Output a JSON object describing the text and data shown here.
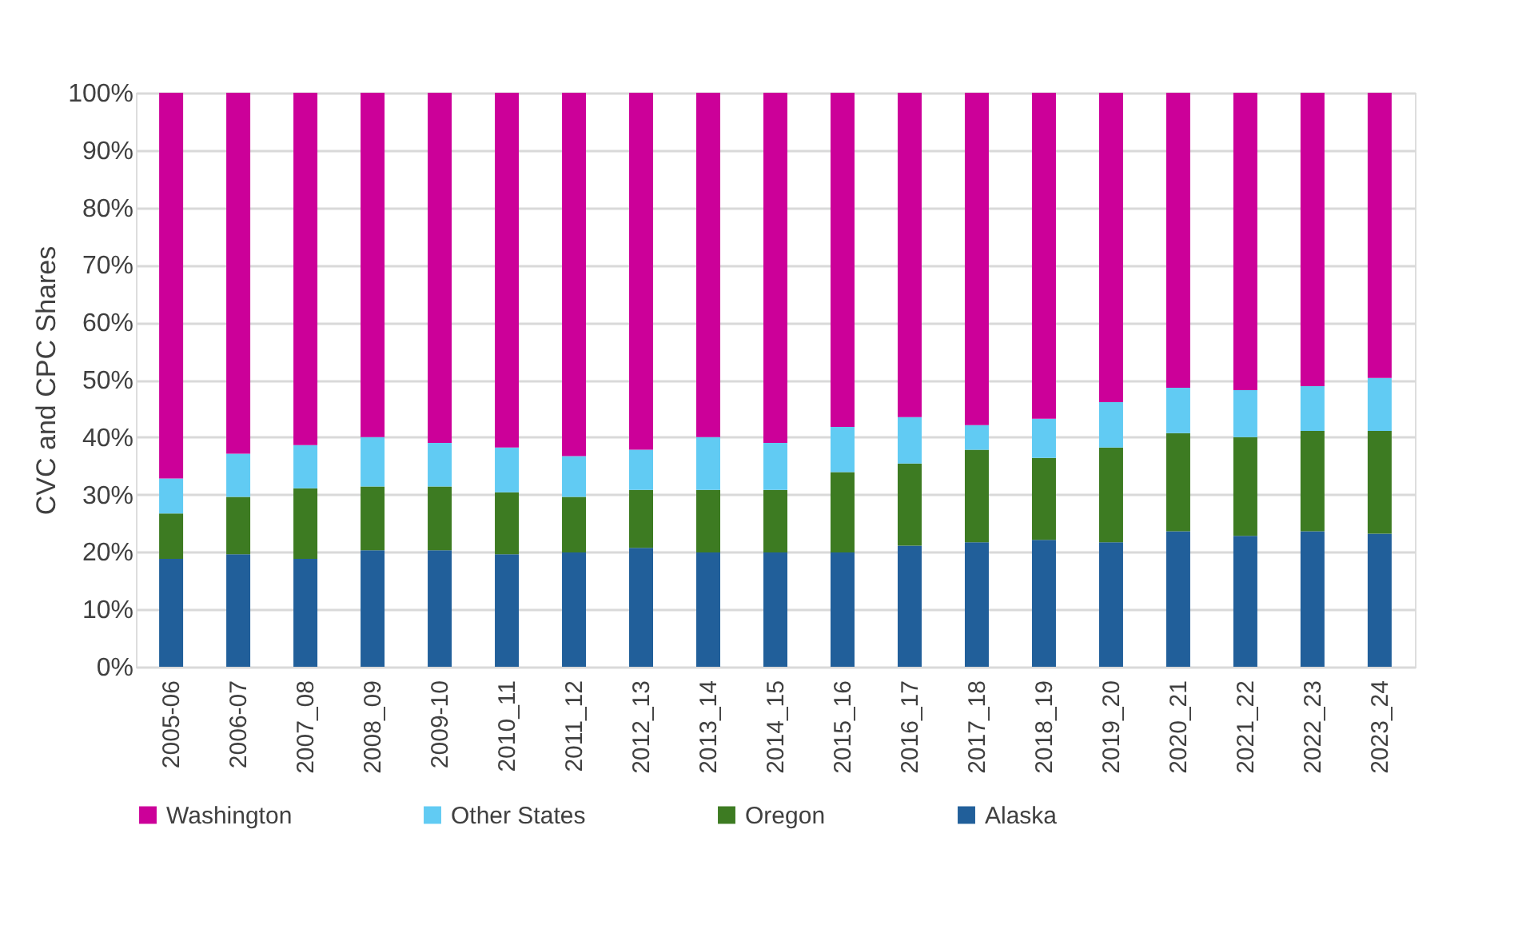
{
  "chart_data": {
    "type": "bar",
    "stacked": true,
    "ylabel": "CVC and CPC Shares",
    "categories": [
      "2005-06",
      "2006-07",
      "2007_08",
      "2008_09",
      "2009-10",
      "2010_11",
      "2011_12",
      "2012_13",
      "2013_14",
      "2014_15",
      "2015_16",
      "2016_17",
      "2017_18",
      "2018_19",
      "2019_20",
      "2020_21",
      "2021_22",
      "2022_23",
      "2023_24"
    ],
    "series": [
      {
        "name": "Alaska",
        "color": "#215f9a",
        "values": [
          18.8,
          19.6,
          18.8,
          20.3,
          20.3,
          19.6,
          19.9,
          20.7,
          19.9,
          19.9,
          19.9,
          21.1,
          21.7,
          22.1,
          21.7,
          23.6,
          22.8,
          23.6,
          23.2
        ]
      },
      {
        "name": "Oregon",
        "color": "#3d7b22",
        "values": [
          7.9,
          10.0,
          12.3,
          11.1,
          11.1,
          10.8,
          9.7,
          10.1,
          10.9,
          10.9,
          14.0,
          14.3,
          16.1,
          14.3,
          16.5,
          17.1,
          17.2,
          17.5,
          17.9
        ]
      },
      {
        "name": "Other States",
        "color": "#61cbf3",
        "values": [
          6.1,
          7.5,
          7.5,
          8.6,
          7.6,
          7.8,
          7.1,
          7.0,
          9.2,
          8.2,
          7.9,
          8.1,
          4.3,
          6.8,
          7.9,
          7.9,
          8.2,
          7.8,
          9.2
        ]
      },
      {
        "name": "Washington",
        "color": "#cc0099",
        "values": [
          67.2,
          62.9,
          61.4,
          60.0,
          61.0,
          61.8,
          63.3,
          62.2,
          60.0,
          61.0,
          58.2,
          56.5,
          57.9,
          56.8,
          53.9,
          51.4,
          51.8,
          51.1,
          49.7
        ]
      }
    ],
    "ylim": [
      0,
      100
    ],
    "yticks": [
      {
        "value": 0,
        "label": "0%"
      },
      {
        "value": 10,
        "label": "10%"
      },
      {
        "value": 20,
        "label": "20%"
      },
      {
        "value": 30,
        "label": "30%"
      },
      {
        "value": 40,
        "label": "40%"
      },
      {
        "value": 50,
        "label": "50%"
      },
      {
        "value": 60,
        "label": "60%"
      },
      {
        "value": 70,
        "label": "70%"
      },
      {
        "value": 80,
        "label": "80%"
      },
      {
        "value": 90,
        "label": "90%"
      },
      {
        "value": 100,
        "label": "100%"
      }
    ],
    "grid": "y",
    "legend": "bottom"
  }
}
